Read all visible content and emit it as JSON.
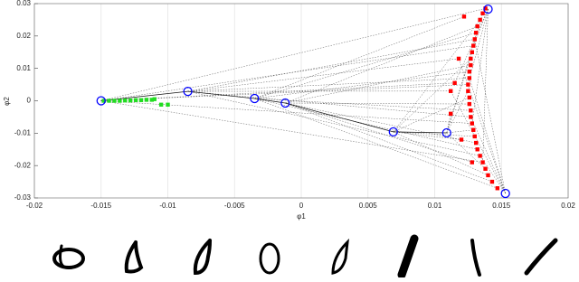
{
  "chart_data": {
    "type": "scatter",
    "x_label": "φ1",
    "y_label": "φ2",
    "xlim": [
      -0.02,
      0.02
    ],
    "xticks": [
      -0.02,
      -0.015,
      -0.01,
      -0.005,
      0,
      0.005,
      0.01,
      0.015,
      0.02
    ],
    "ylim": [
      -0.03,
      0.03
    ],
    "yticks": [
      -0.03,
      -0.02,
      -0.01,
      0,
      0.01,
      0.02,
      0.03
    ],
    "grid": true,
    "series": [
      {
        "color": "#22dd22",
        "marker": "square",
        "x": [
          -0.0148,
          -0.0144,
          -0.014,
          -0.0136,
          -0.0132,
          -0.0128,
          -0.0124,
          -0.012,
          -0.0116,
          -0.0112,
          -0.011,
          -0.0105,
          -0.01
        ],
        "values": [
          0,
          0,
          0,
          0,
          0.0001,
          0.0001,
          0.0002,
          0.0002,
          0.0003,
          0.0003,
          0.0005,
          -0.0012,
          -0.0012
        ]
      },
      {
        "color": "#ff0000",
        "marker": "square",
        "x": [
          0.0138,
          0.0136,
          0.0134,
          0.0132,
          0.0131,
          0.013,
          0.0129,
          0.0128,
          0.0127,
          0.0127,
          0.0126,
          0.0126,
          0.0125,
          0.0125,
          0.0126,
          0.0126,
          0.0127,
          0.0127,
          0.0128,
          0.0129,
          0.013,
          0.0131,
          0.0132,
          0.0134,
          0.0136,
          0.0138,
          0.014,
          0.0143,
          0.0147,
          0.0118,
          0.0115,
          0.0112,
          0.012,
          0.0128,
          0.0122,
          0.0112
        ],
        "values": [
          0.0285,
          0.027,
          0.025,
          0.023,
          0.021,
          0.019,
          0.017,
          0.015,
          0.013,
          0.011,
          0.009,
          0.007,
          0.005,
          0.003,
          0.001,
          -0.001,
          -0.003,
          -0.005,
          -0.007,
          -0.009,
          -0.011,
          -0.013,
          -0.015,
          -0.017,
          -0.019,
          -0.021,
          -0.023,
          -0.025,
          -0.027,
          0.013,
          0.0055,
          -0.004,
          -0.012,
          -0.019,
          0.026,
          0.003
        ]
      },
      {
        "color": "#0000ff",
        "marker": "circle",
        "x": [
          -0.015,
          -0.0085,
          -0.0035,
          -0.0012,
          0.0069,
          0.0109,
          0.014,
          0.0153
        ],
        "values": [
          0,
          0.0029,
          0.0007,
          -0.0007,
          -0.0096,
          -0.0099,
          0.0283,
          -0.0286
        ]
      }
    ]
  }
}
